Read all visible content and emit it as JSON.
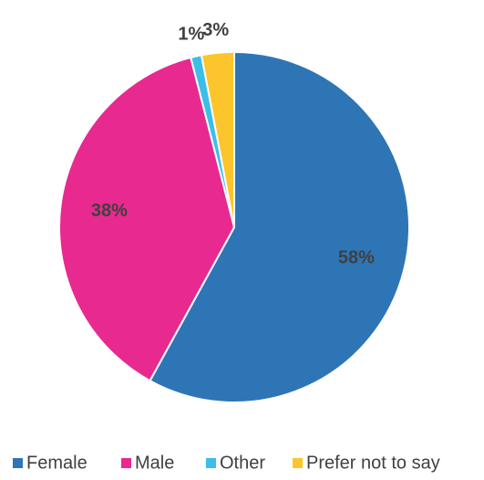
{
  "chart_data": {
    "type": "pie",
    "categories": [
      "Female",
      "Male",
      "Other",
      "Prefer not to say"
    ],
    "values": [
      58,
      38,
      1,
      3
    ],
    "value_labels": [
      "58%",
      "38%",
      "1%",
      "3%"
    ],
    "colors": [
      "#2e75b6",
      "#e8298f",
      "#3bbfe8",
      "#fdc52c"
    ],
    "legend": "bottom"
  }
}
